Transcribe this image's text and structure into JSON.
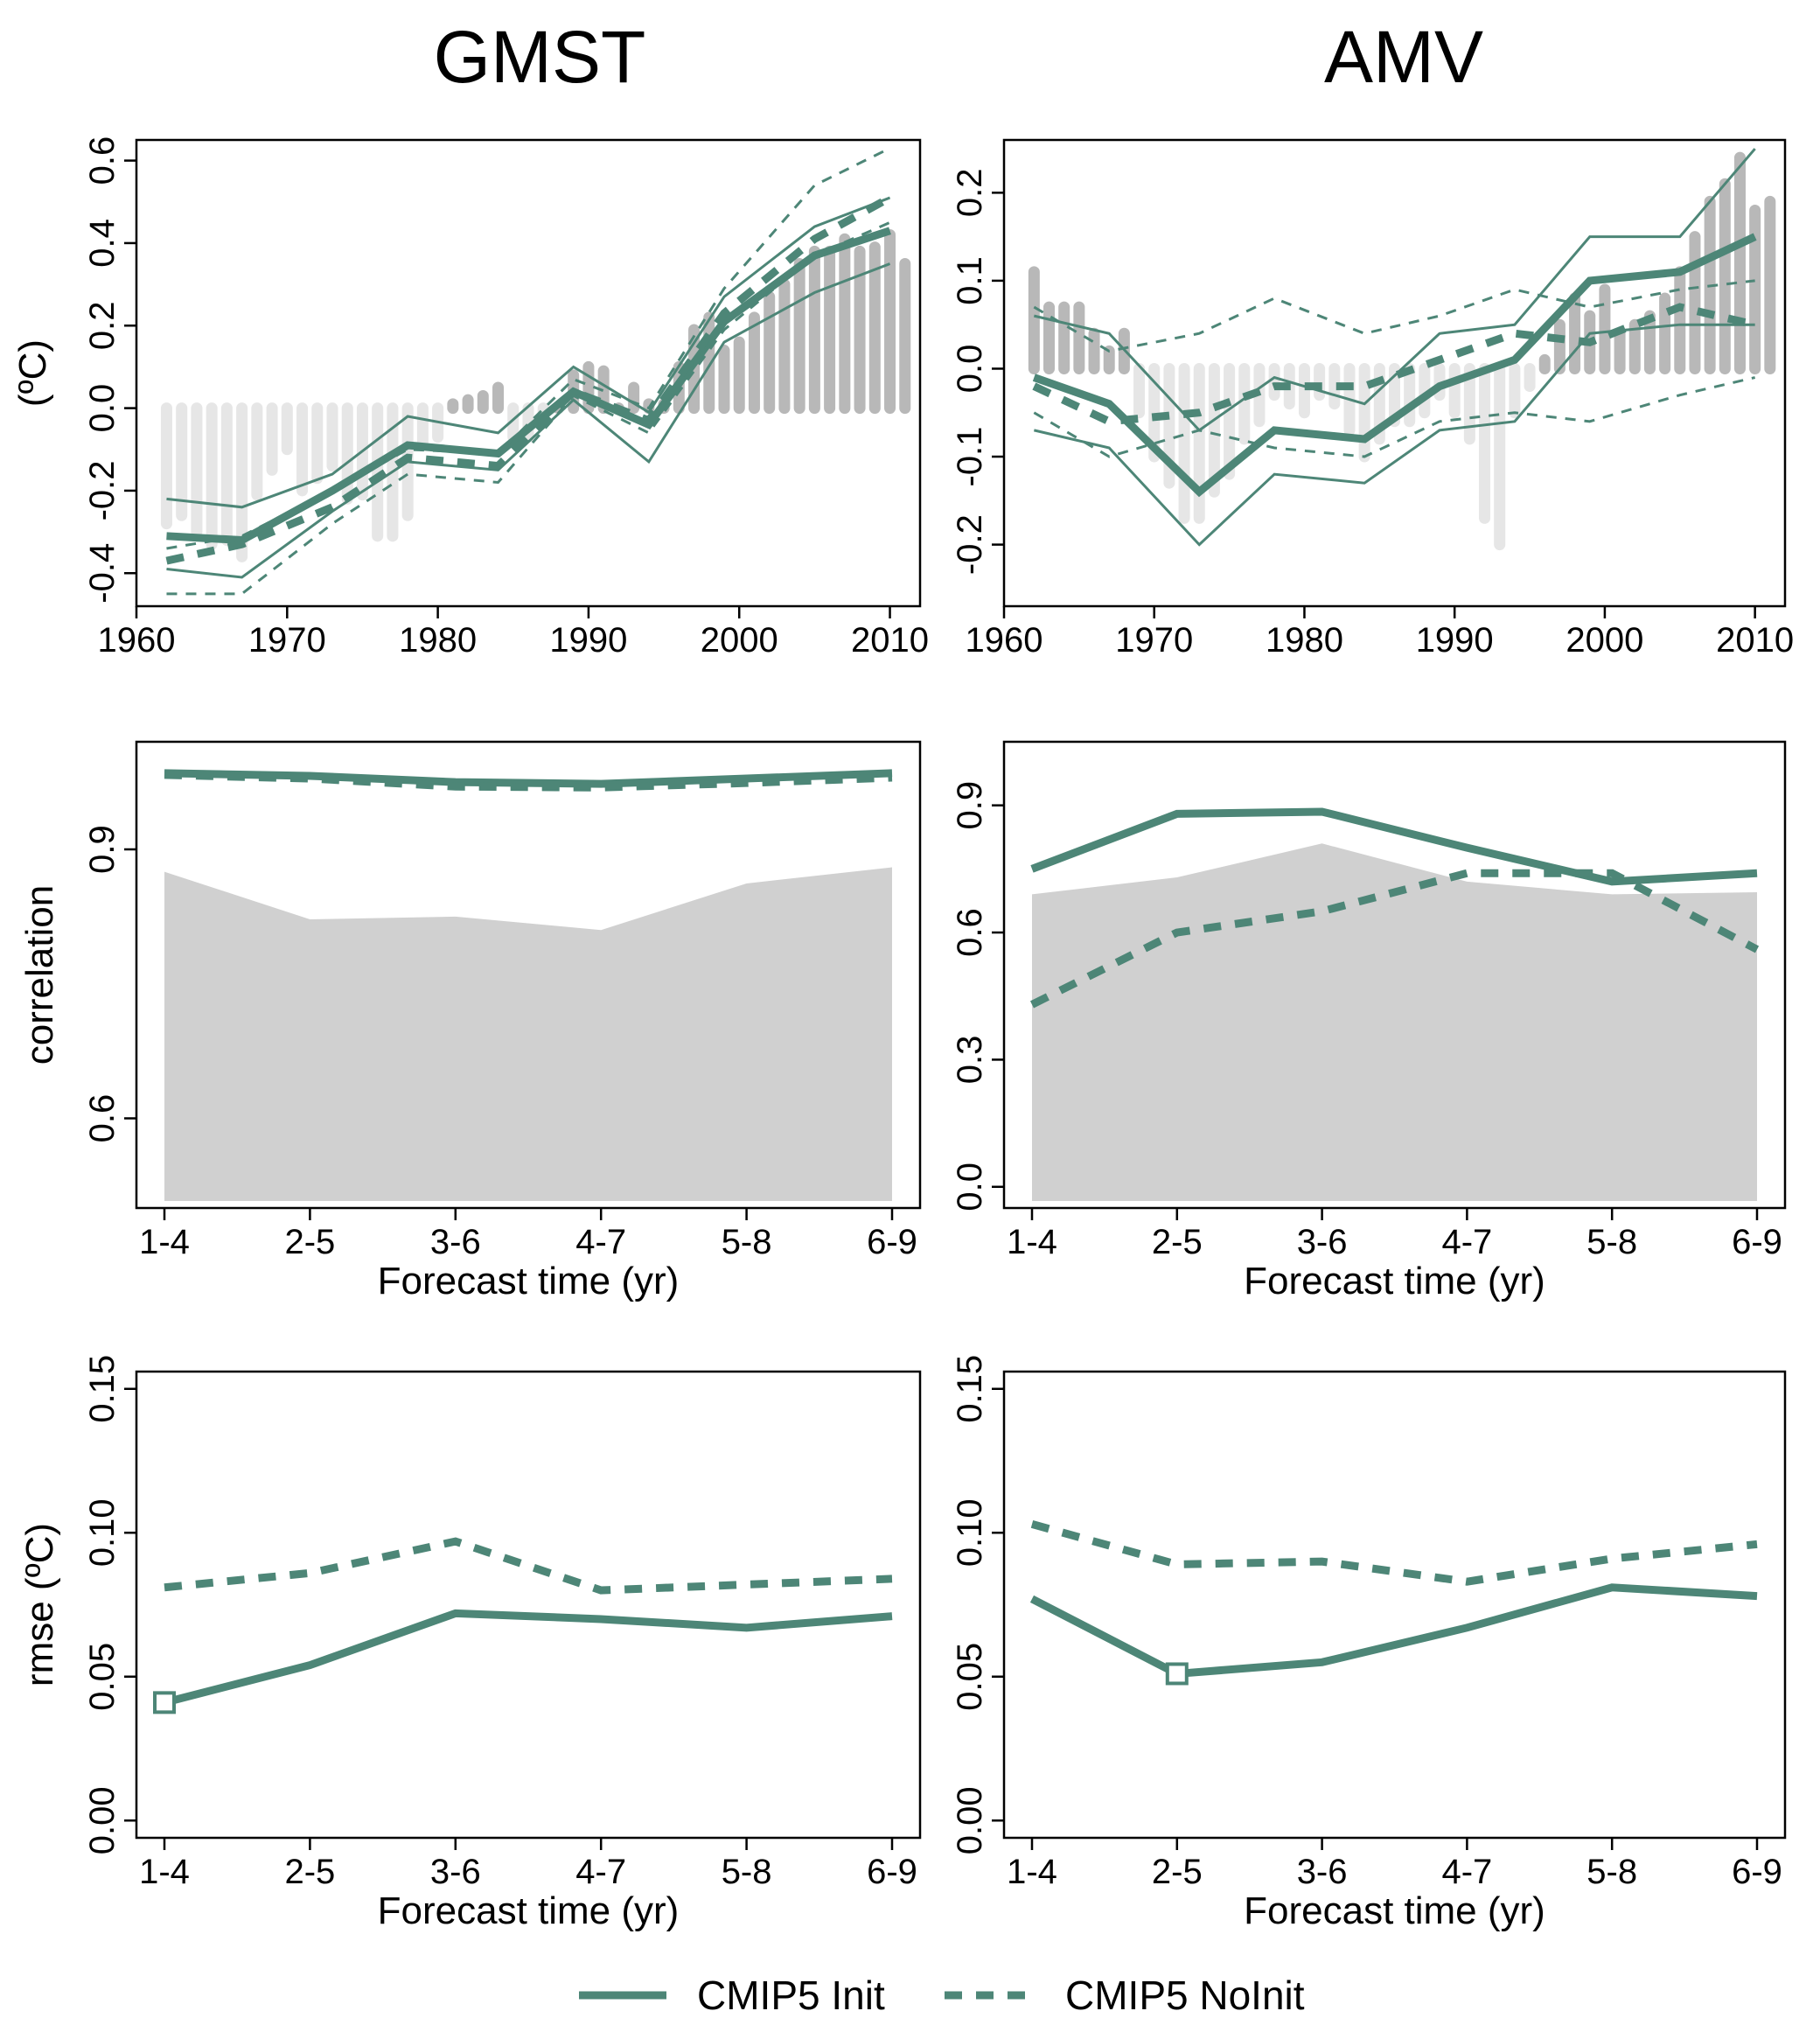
{
  "columns": [
    {
      "title": "GMST",
      "accent": "#4d8677"
    },
    {
      "title": "AMV",
      "accent": "#4d8677"
    }
  ],
  "legend": [
    {
      "label": "CMIP5 Init",
      "style": "solid",
      "color": "#4d8677"
    },
    {
      "label": "CMIP5 NoInit",
      "style": "dashed",
      "color": "#4d8677"
    }
  ],
  "chart_data": [
    {
      "id": "gmst_ts",
      "type": "line",
      "panel": "top-left",
      "ylabel": "(ºC)",
      "xlim": [
        1960,
        2012
      ],
      "ylim": [
        -0.48,
        0.65
      ],
      "xticks": [
        1960,
        1970,
        1980,
        1990,
        2000,
        2010
      ],
      "yticks": [
        -0.4,
        -0.2,
        0.0,
        0.2,
        0.4,
        0.6
      ],
      "ytick_labels": [
        "-0.4",
        "-0.2",
        "0.0",
        "0.2",
        "0.4",
        "0.6"
      ],
      "x": [
        1962,
        1967,
        1973,
        1978,
        1984,
        1989,
        1994,
        1999,
        2005,
        2010
      ],
      "series": [
        {
          "style": "solid-thick",
          "values": [
            -0.31,
            -0.32,
            -0.2,
            -0.09,
            -0.11,
            0.04,
            -0.04,
            0.21,
            0.37,
            0.43
          ]
        },
        {
          "style": "solid-thin",
          "values": [
            -0.22,
            -0.24,
            -0.16,
            -0.02,
            -0.06,
            0.1,
            -0.01,
            0.27,
            0.44,
            0.51
          ]
        },
        {
          "style": "solid-thin",
          "values": [
            -0.39,
            -0.41,
            -0.25,
            -0.13,
            -0.15,
            0.02,
            -0.13,
            0.16,
            0.28,
            0.35
          ]
        },
        {
          "style": "dashed-thick",
          "values": [
            -0.37,
            -0.33,
            -0.24,
            -0.12,
            -0.14,
            0.04,
            -0.03,
            0.23,
            0.41,
            0.51
          ]
        },
        {
          "style": "dashed-thin",
          "values": [
            -0.34,
            -0.31,
            -0.2,
            -0.1,
            -0.11,
            0.07,
            0.0,
            0.29,
            0.54,
            0.63
          ]
        },
        {
          "style": "dashed-thin",
          "values": [
            -0.45,
            -0.45,
            -0.28,
            -0.16,
            -0.18,
            0.03,
            -0.06,
            0.19,
            0.37,
            0.45
          ]
        }
      ],
      "bars": {
        "x": [
          1962,
          1963,
          1964,
          1965,
          1966,
          1967,
          1968,
          1969,
          1970,
          1971,
          1972,
          1973,
          1974,
          1975,
          1976,
          1977,
          1978,
          1979,
          1980,
          1981,
          1982,
          1983,
          1984,
          1985,
          1986,
          1987,
          1988,
          1989,
          1990,
          1991,
          1992,
          1993,
          1994,
          1995,
          1996,
          1997,
          1998,
          1999,
          2000,
          2001,
          2002,
          2003,
          2004,
          2005,
          2006,
          2007,
          2008,
          2009,
          2010,
          2011
        ],
        "values": [
          -0.28,
          -0.26,
          -0.3,
          -0.33,
          -0.32,
          -0.36,
          -0.21,
          -0.15,
          -0.1,
          -0.2,
          -0.17,
          -0.14,
          -0.22,
          -0.21,
          -0.31,
          -0.31,
          -0.26,
          -0.09,
          -0.07,
          0.01,
          0.02,
          0.03,
          0.05,
          -0.07,
          -0.07,
          -0.03,
          0.0,
          0.08,
          0.1,
          0.09,
          0.0,
          0.05,
          0.01,
          0.01,
          0.1,
          0.19,
          0.22,
          0.14,
          0.16,
          0.22,
          0.27,
          0.3,
          0.35,
          0.38,
          0.38,
          0.41,
          0.38,
          0.39,
          0.42,
          0.35
        ],
        "color_positive": "#b8b8b8",
        "color_negative": "#e6e6e6"
      }
    },
    {
      "id": "amv_ts",
      "type": "line",
      "panel": "top-right",
      "ylabel": "",
      "xlim": [
        1960,
        2012
      ],
      "ylim": [
        -0.27,
        0.26
      ],
      "xticks": [
        1960,
        1970,
        1980,
        1990,
        2000,
        2010
      ],
      "yticks": [
        -0.2,
        -0.1,
        0.0,
        0.1,
        0.2
      ],
      "ytick_labels": [
        "-0.2",
        "-0.1",
        "0.0",
        "0.1",
        "0.2"
      ],
      "x": [
        1962,
        1967,
        1973,
        1978,
        1984,
        1989,
        1994,
        1999,
        2005,
        2010
      ],
      "series": [
        {
          "style": "solid-thick",
          "values": [
            -0.01,
            -0.04,
            -0.14,
            -0.07,
            -0.08,
            -0.02,
            0.01,
            0.1,
            0.11,
            0.15
          ]
        },
        {
          "style": "solid-thin",
          "values": [
            0.06,
            0.04,
            -0.07,
            -0.01,
            -0.04,
            0.04,
            0.05,
            0.15,
            0.15,
            0.25
          ]
        },
        {
          "style": "solid-thin",
          "values": [
            -0.07,
            -0.09,
            -0.2,
            -0.12,
            -0.13,
            -0.07,
            -0.06,
            0.04,
            0.05,
            0.05
          ]
        },
        {
          "style": "dashed-thick",
          "values": [
            -0.02,
            -0.06,
            -0.05,
            -0.02,
            -0.02,
            0.01,
            0.04,
            0.03,
            0.07,
            0.05
          ]
        },
        {
          "style": "dashed-thin",
          "values": [
            0.07,
            0.02,
            0.04,
            0.08,
            0.04,
            0.06,
            0.09,
            0.07,
            0.09,
            0.1
          ]
        },
        {
          "style": "dashed-thin",
          "values": [
            -0.05,
            -0.1,
            -0.07,
            -0.09,
            -0.1,
            -0.06,
            -0.05,
            -0.06,
            -0.03,
            -0.01
          ]
        }
      ],
      "bars": {
        "x": [
          1962,
          1963,
          1964,
          1965,
          1966,
          1967,
          1968,
          1969,
          1970,
          1971,
          1972,
          1973,
          1974,
          1975,
          1976,
          1977,
          1978,
          1979,
          1980,
          1981,
          1982,
          1983,
          1984,
          1985,
          1986,
          1987,
          1988,
          1989,
          1990,
          1991,
          1992,
          1993,
          1994,
          1995,
          1996,
          1997,
          1998,
          1999,
          2000,
          2001,
          2002,
          2003,
          2004,
          2005,
          2006,
          2007,
          2008,
          2009,
          2010,
          2011
        ],
        "values": [
          0.11,
          0.07,
          0.07,
          0.07,
          0.04,
          0.02,
          0.04,
          -0.05,
          -0.1,
          -0.13,
          -0.17,
          -0.17,
          -0.14,
          -0.12,
          -0.08,
          -0.06,
          -0.03,
          -0.04,
          -0.05,
          -0.03,
          -0.04,
          -0.07,
          -0.1,
          -0.08,
          -0.06,
          -0.06,
          -0.05,
          -0.03,
          -0.05,
          -0.08,
          -0.17,
          -0.2,
          -0.05,
          -0.02,
          0.01,
          0.05,
          0.08,
          0.06,
          0.09,
          0.04,
          0.05,
          0.06,
          0.08,
          0.11,
          0.15,
          0.19,
          0.21,
          0.24,
          0.18,
          0.19
        ],
        "color_positive": "#b8b8b8",
        "color_negative": "#e6e6e6"
      }
    },
    {
      "id": "gmst_corr",
      "type": "line",
      "panel": "middle-left",
      "ylabel": "correlation",
      "xlabel": "Forecast time (yr)",
      "categories": [
        "1-4",
        "2-5",
        "3-6",
        "4-7",
        "5-8",
        "6-9"
      ],
      "ylim": [
        0.5,
        1.02
      ],
      "yticks": [
        0.6,
        0.9
      ],
      "ytick_labels": [
        "0.6",
        "0.9"
      ],
      "area": {
        "values": [
          0.875,
          0.822,
          0.825,
          0.81,
          0.862,
          0.88
        ],
        "color": "#d0d0d0"
      },
      "series": [
        {
          "style": "solid-thick",
          "values": [
            0.985,
            0.982,
            0.975,
            0.973,
            0.979,
            0.985
          ]
        },
        {
          "style": "dashed-thick",
          "values": [
            0.983,
            0.979,
            0.97,
            0.969,
            0.974,
            0.98
          ]
        }
      ]
    },
    {
      "id": "amv_corr",
      "type": "line",
      "panel": "middle-right",
      "ylabel": "",
      "xlabel": "Forecast time (yr)",
      "categories": [
        "1-4",
        "2-5",
        "3-6",
        "4-7",
        "5-8",
        "6-9"
      ],
      "ylim": [
        -0.05,
        1.05
      ],
      "yticks": [
        0.0,
        0.3,
        0.6,
        0.9
      ],
      "ytick_labels": [
        "0.0",
        "0.3",
        "0.6",
        "0.9"
      ],
      "area": {
        "values": [
          0.69,
          0.73,
          0.81,
          0.72,
          0.69,
          0.695
        ],
        "color": "#d0d0d0"
      },
      "series": [
        {
          "style": "solid-thick",
          "values": [
            0.75,
            0.88,
            0.885,
            0.8,
            0.72,
            0.74
          ]
        },
        {
          "style": "dashed-thick",
          "values": [
            0.43,
            0.6,
            0.65,
            0.74,
            0.74,
            0.56
          ]
        }
      ]
    },
    {
      "id": "gmst_rmse",
      "type": "line",
      "panel": "bottom-left",
      "ylabel": "rmse (ºC)",
      "xlabel": "Forecast time (yr)",
      "categories": [
        "1-4",
        "2-5",
        "3-6",
        "4-7",
        "5-8",
        "6-9"
      ],
      "ylim": [
        -0.006,
        0.156
      ],
      "yticks": [
        0.0,
        0.05,
        0.1,
        0.15
      ],
      "ytick_labels": [
        "0.00",
        "0.05",
        "0.10",
        "0.15"
      ],
      "series": [
        {
          "style": "solid-thick",
          "values": [
            0.041,
            0.054,
            0.072,
            0.07,
            0.067,
            0.071
          ]
        },
        {
          "style": "dashed-thick",
          "values": [
            0.081,
            0.086,
            0.097,
            0.08,
            0.082,
            0.084
          ]
        }
      ],
      "marker": {
        "category": "1-4",
        "value": 0.041,
        "shape": "open-square"
      }
    },
    {
      "id": "amv_rmse",
      "type": "line",
      "panel": "bottom-right",
      "ylabel": "",
      "xlabel": "Forecast time (yr)",
      "categories": [
        "1-4",
        "2-5",
        "3-6",
        "4-7",
        "5-8",
        "6-9"
      ],
      "ylim": [
        -0.006,
        0.156
      ],
      "yticks": [
        0.0,
        0.05,
        0.1,
        0.15
      ],
      "ytick_labels": [
        "0.00",
        "0.05",
        "0.10",
        "0.15"
      ],
      "series": [
        {
          "style": "solid-thick",
          "values": [
            0.077,
            0.051,
            0.055,
            0.067,
            0.081,
            0.078
          ]
        },
        {
          "style": "dashed-thick",
          "values": [
            0.103,
            0.089,
            0.09,
            0.083,
            0.091,
            0.096
          ]
        }
      ],
      "marker": {
        "category": "2-5",
        "value": 0.051,
        "shape": "open-square"
      }
    }
  ]
}
